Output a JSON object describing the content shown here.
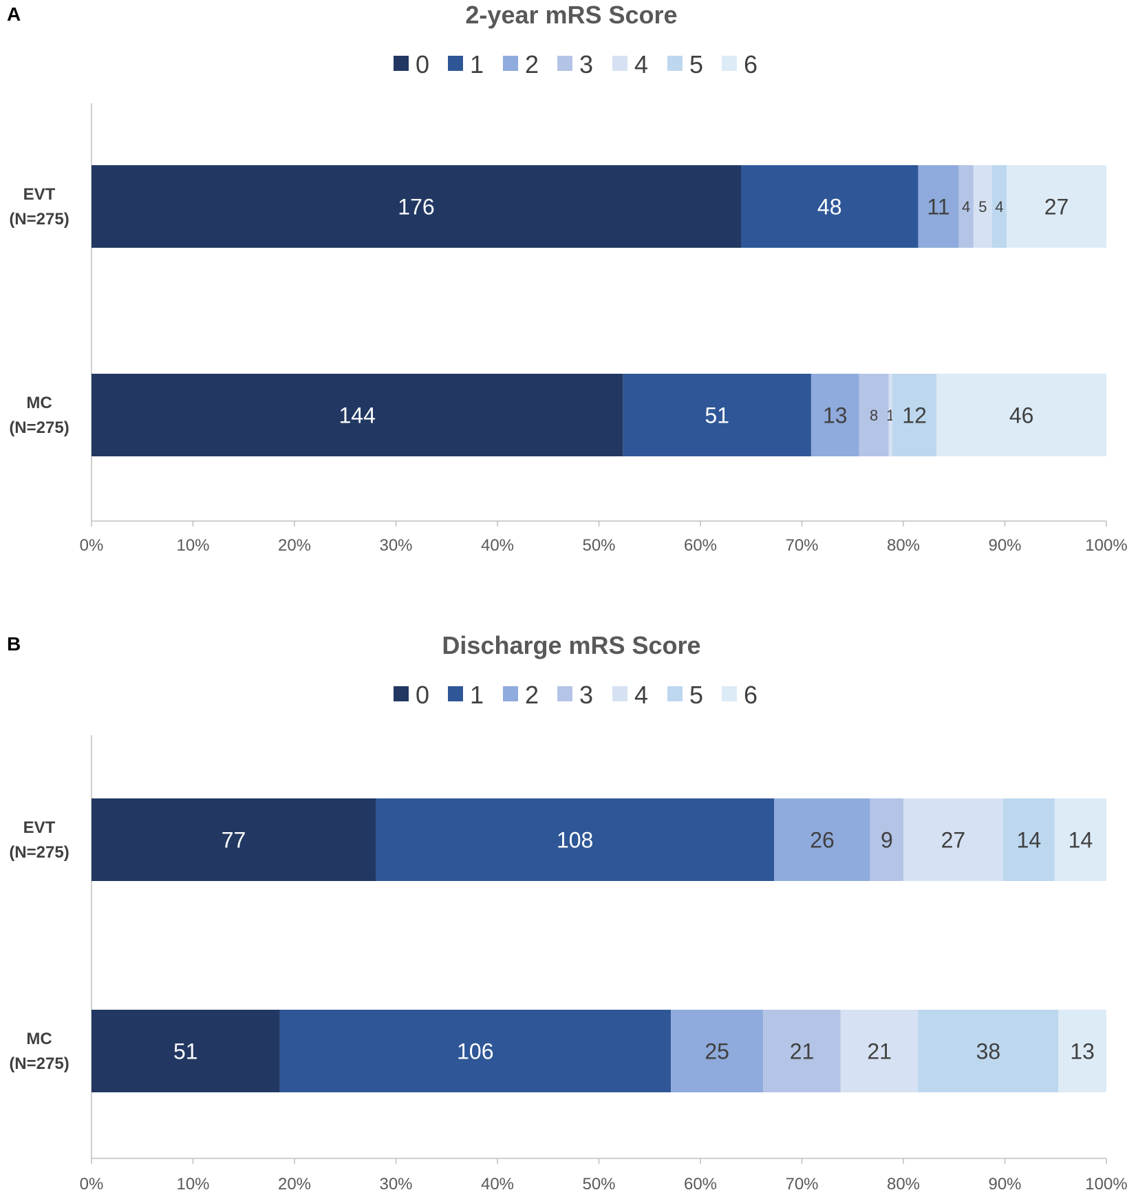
{
  "chart_data": [
    {
      "type": "bar",
      "orientation": "horizontal",
      "stacked": "percent",
      "panel_label": "A",
      "title": "2-year mRS Score",
      "categories": [
        "EVT\n(N=275)",
        "MC\n(N=275)"
      ],
      "series": [
        {
          "name": "0",
          "values": [
            176,
            144
          ]
        },
        {
          "name": "1",
          "values": [
            48,
            51
          ]
        },
        {
          "name": "2",
          "values": [
            11,
            13
          ]
        },
        {
          "name": "3",
          "values": [
            4,
            8
          ]
        },
        {
          "name": "4",
          "values": [
            5,
            1
          ]
        },
        {
          "name": "5",
          "values": [
            4,
            12
          ]
        },
        {
          "name": "6",
          "values": [
            27,
            46
          ]
        }
      ],
      "xlim": [
        0,
        100
      ],
      "xticks": [
        "0%",
        "10%",
        "20%",
        "30%",
        "40%",
        "50%",
        "60%",
        "70%",
        "80%",
        "90%",
        "100%"
      ],
      "legend_position": "top",
      "grid": false
    },
    {
      "type": "bar",
      "orientation": "horizontal",
      "stacked": "percent",
      "panel_label": "B",
      "title": "Discharge mRS Score",
      "categories": [
        "EVT\n(N=275)",
        "MC\n(N=275)"
      ],
      "series": [
        {
          "name": "0",
          "values": [
            77,
            51
          ]
        },
        {
          "name": "1",
          "values": [
            108,
            106
          ]
        },
        {
          "name": "2",
          "values": [
            26,
            25
          ]
        },
        {
          "name": "3",
          "values": [
            9,
            21
          ]
        },
        {
          "name": "4",
          "values": [
            27,
            21
          ]
        },
        {
          "name": "5",
          "values": [
            14,
            38
          ]
        },
        {
          "name": "6",
          "values": [
            14,
            13
          ]
        }
      ],
      "xlim": [
        0,
        100
      ],
      "xticks": [
        "0%",
        "10%",
        "20%",
        "30%",
        "40%",
        "50%",
        "60%",
        "70%",
        "80%",
        "90%",
        "100%"
      ],
      "legend_position": "top",
      "grid": false
    }
  ],
  "colors": {
    "series": [
      "#223862",
      "#2f5797",
      "#8faadc",
      "#b4c4e6",
      "#d6e2f3",
      "#bdd7ee",
      "#ddebf7"
    ],
    "label_dark": "#ffffff",
    "label_light": "#404040",
    "axis": "#bfbfbf"
  }
}
